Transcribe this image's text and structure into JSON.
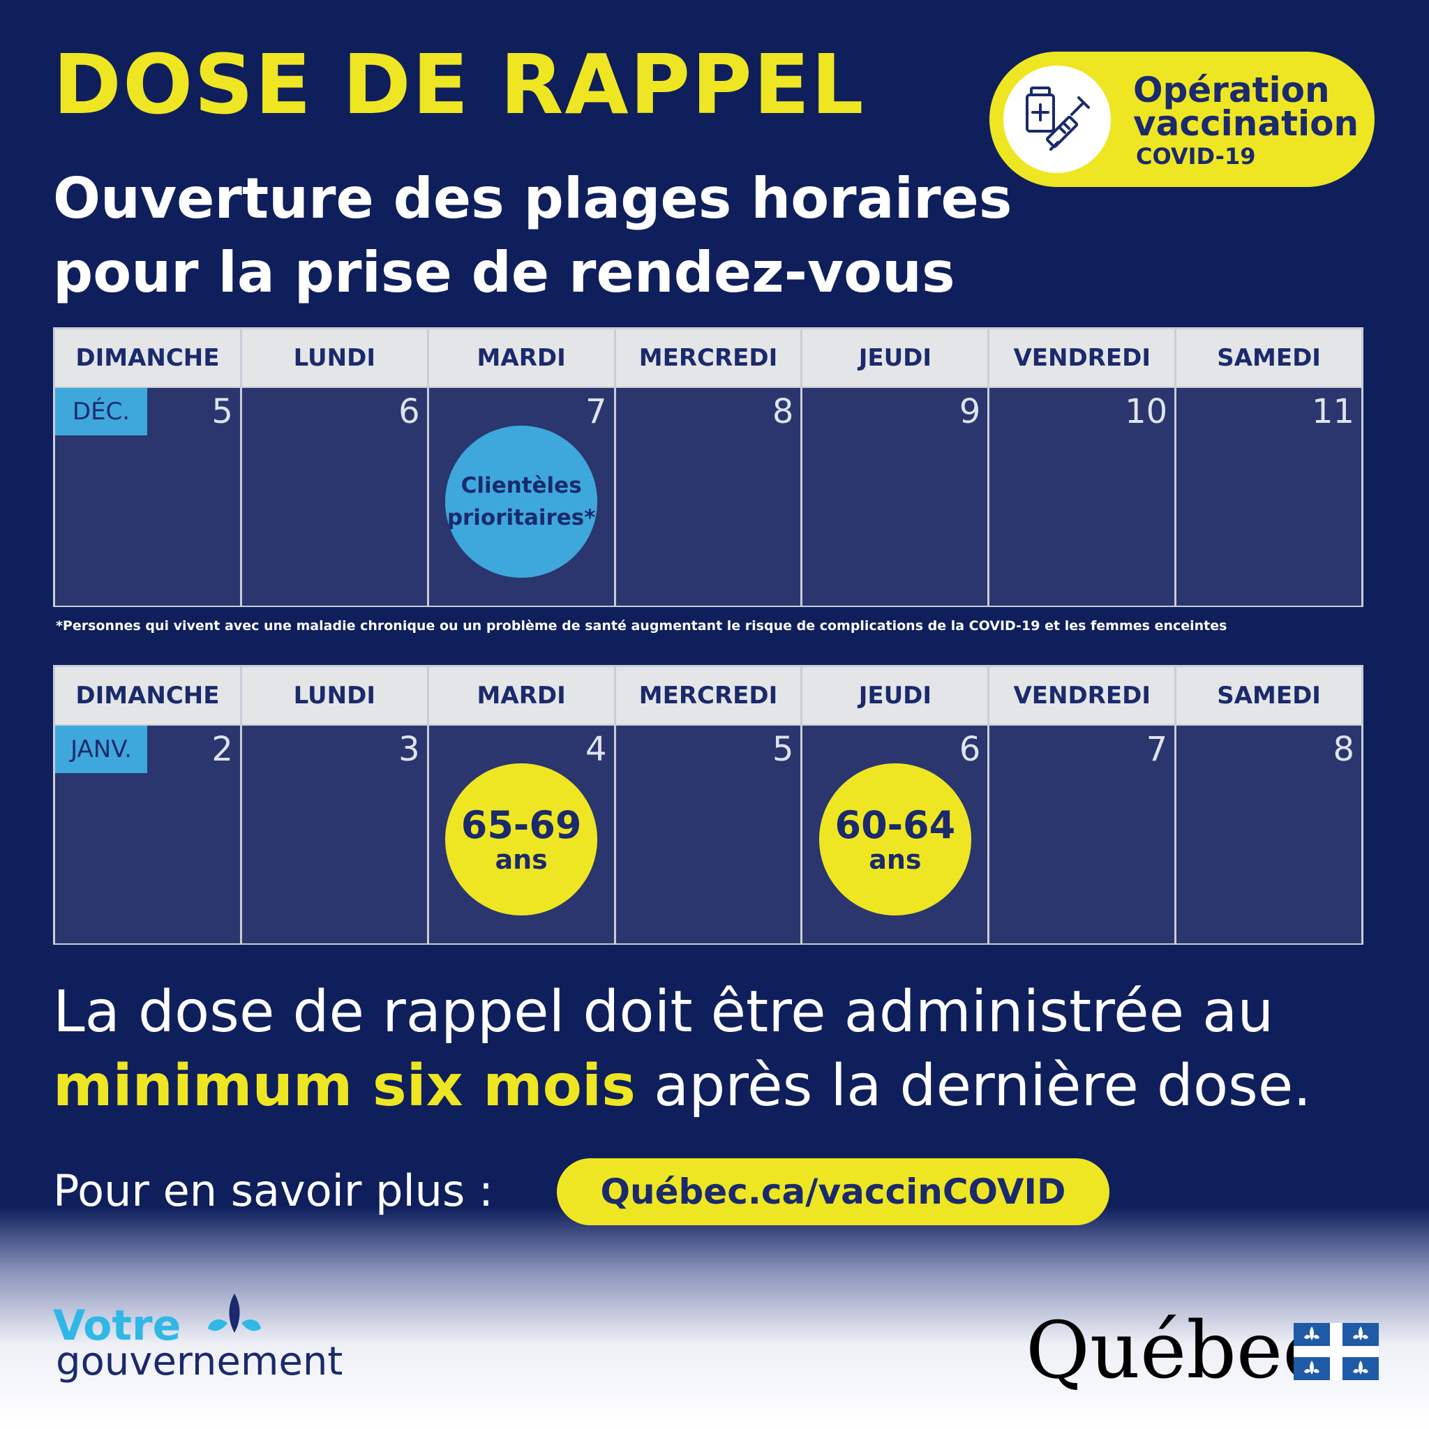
{
  "title": "DOSE DE RAPPEL",
  "subtitle": {
    "line1": "Ouverture des plages horaires",
    "line2": "pour la prise de rendez-vous"
  },
  "badge": {
    "icon": "vaccine-vial-syringe-icon",
    "line1": "Opération",
    "line2": "vaccination",
    "line3": "COVID-19"
  },
  "calendar_december": {
    "month": "DÉC.",
    "days": [
      "DIMANCHE",
      "LUNDI",
      "MARDI",
      "MERCREDI",
      "JEUDI",
      "VENDREDI",
      "SAMEDI"
    ],
    "dates": [
      "5",
      "6",
      "7",
      "8",
      "9",
      "10",
      "11"
    ],
    "event": {
      "day_index": 2,
      "line1": "Clientèles",
      "line2": "prioritaires*",
      "color": "#3ea8dc"
    }
  },
  "footnote": "*Personnes qui vivent avec une maladie chronique ou un problème de santé augmentant le risque de complications de la COVID-19 et les femmes enceintes",
  "calendar_january": {
    "month": "JANV.",
    "days": [
      "DIMANCHE",
      "LUNDI",
      "MARDI",
      "MERCREDI",
      "JEUDI",
      "VENDREDI",
      "SAMEDI"
    ],
    "dates": [
      "2",
      "3",
      "4",
      "5",
      "6",
      "7",
      "8"
    ],
    "events": [
      {
        "day_index": 2,
        "range": "65-69",
        "unit": "ans",
        "color": "#efe623"
      },
      {
        "day_index": 4,
        "range": "60-64",
        "unit": "ans",
        "color": "#efe623"
      }
    ]
  },
  "statement": {
    "line1": "La dose de rappel doit être administrée au",
    "highlight": "minimum six mois",
    "rest": " après la dernière dose."
  },
  "more_info": {
    "label": "Pour en savoir plus :",
    "url": "Québec.ca/vaccinCOVID"
  },
  "footer": {
    "votre": "Votre",
    "gouvernement": "gouvernement",
    "quebec": "Québec",
    "flag_icon": "quebec-flag-icon"
  },
  "colors": {
    "background": "#0f1f5c",
    "accent_yellow": "#efe623",
    "accent_blue": "#3ea8dc",
    "cell": "#2a366d",
    "navy_text": "#1a2a6c"
  }
}
